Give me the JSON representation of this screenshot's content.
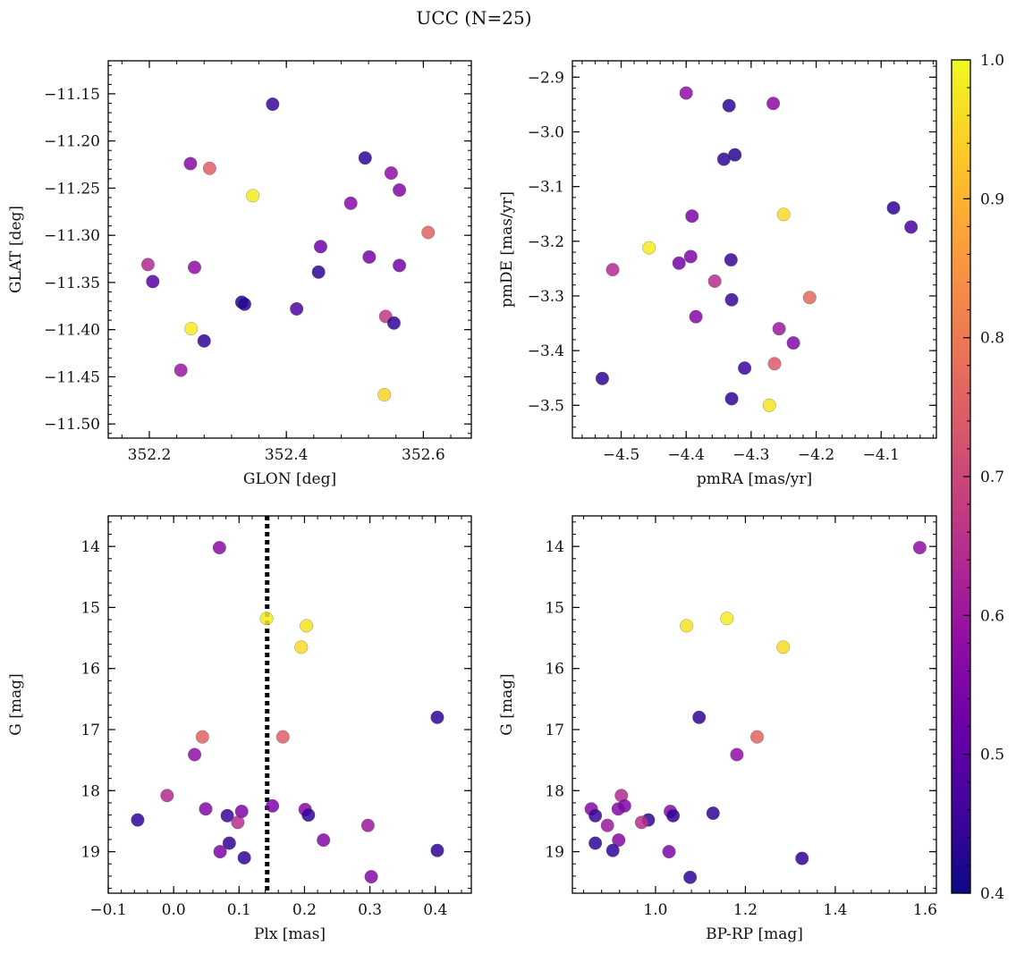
{
  "title": "UCC (N=25)",
  "colorbar": {
    "range": [
      0.4,
      1.0
    ],
    "ticks": [
      0.4,
      0.5,
      0.6,
      0.7,
      0.8,
      0.9,
      1.0
    ],
    "tick_labels": [
      "0.4",
      "0.5",
      "0.6",
      "0.7",
      "0.8",
      "0.9",
      "1.0"
    ],
    "colormap": "plasma"
  },
  "chart_data": [
    {
      "type": "scatter",
      "xlabel": "GLON [deg]",
      "ylabel": "GLAT [deg]",
      "xlim": [
        352.14,
        352.67
      ],
      "ylim": [
        -11.515,
        -11.115
      ],
      "y_inverted": false,
      "xticks": [
        352.2,
        352.4,
        352.6
      ],
      "xtick_labels": [
        "352.2",
        "352.4",
        "352.6"
      ],
      "yticks": [
        -11.15,
        -11.2,
        -11.25,
        -11.3,
        -11.35,
        -11.4,
        -11.45,
        -11.5
      ],
      "ytick_labels": [
        "−11.15",
        "−11.20",
        "−11.25",
        "−11.30",
        "−11.35",
        "−11.40",
        "−11.45",
        "−11.50"
      ],
      "x": [
        352.38,
        352.26,
        352.288,
        352.515,
        352.553,
        352.351,
        352.565,
        352.494,
        352.607,
        352.45,
        352.198,
        352.521,
        352.266,
        352.565,
        352.205,
        352.447,
        352.335,
        352.339,
        352.415,
        352.545,
        352.557,
        352.261,
        352.28,
        352.246,
        352.543
      ],
      "y": [
        -11.161,
        -11.224,
        -11.229,
        -11.218,
        -11.234,
        -11.258,
        -11.252,
        -11.266,
        -11.297,
        -11.312,
        -11.331,
        -11.323,
        -11.334,
        -11.332,
        -11.349,
        -11.339,
        -11.371,
        -11.373,
        -11.378,
        -11.386,
        -11.393,
        -11.399,
        -11.412,
        -11.443,
        -11.469
      ],
      "c": [
        0.45,
        0.57,
        0.75,
        0.44,
        0.58,
        0.98,
        0.56,
        0.57,
        0.76,
        0.53,
        0.64,
        0.54,
        0.58,
        0.54,
        0.49,
        0.44,
        0.43,
        0.43,
        0.48,
        0.67,
        0.44,
        0.98,
        0.44,
        0.6,
        0.95
      ]
    },
    {
      "type": "scatter",
      "xlabel": "pmRA [mas/yr]",
      "ylabel": "pmDE [mas/yr]",
      "xlim": [
        -4.575,
        -4.015
      ],
      "ylim": [
        -3.56,
        -2.87
      ],
      "y_inverted": false,
      "xticks": [
        -4.5,
        -4.4,
        -4.3,
        -4.2,
        -4.1
      ],
      "xtick_labels": [
        "−4.5",
        "−4.4",
        "−4.3",
        "−4.2",
        "−4.1"
      ],
      "yticks": [
        -2.9,
        -3.0,
        -3.1,
        -3.2,
        -3.3,
        -3.4,
        -3.5
      ],
      "ytick_labels": [
        "−2.9",
        "−3.0",
        "−3.1",
        "−3.2",
        "−3.3",
        "−3.4",
        "−3.5"
      ],
      "x": [
        -4.4,
        -4.334,
        -4.266,
        -4.325,
        -4.342,
        -4.081,
        -4.391,
        -4.25,
        -4.054,
        -4.457,
        -4.411,
        -4.393,
        -4.513,
        -4.331,
        -4.356,
        -4.21,
        -4.33,
        -4.385,
        -4.257,
        -4.235,
        -4.264,
        -4.31,
        -4.529,
        -4.33,
        -4.272
      ],
      "y": [
        -2.929,
        -2.952,
        -2.948,
        -3.042,
        -3.05,
        -3.139,
        -3.154,
        -3.151,
        -3.174,
        -3.212,
        -3.24,
        -3.228,
        -3.252,
        -3.234,
        -3.273,
        -3.303,
        -3.307,
        -3.338,
        -3.36,
        -3.386,
        -3.424,
        -3.432,
        -3.451,
        -3.488,
        -3.5
      ],
      "c": [
        0.58,
        0.44,
        0.57,
        0.43,
        0.44,
        0.44,
        0.55,
        0.96,
        0.47,
        0.98,
        0.54,
        0.55,
        0.64,
        0.45,
        0.65,
        0.77,
        0.45,
        0.56,
        0.6,
        0.56,
        0.74,
        0.45,
        0.44,
        0.44,
        0.97
      ],
      "tick_direction": "in"
    },
    {
      "type": "scatter",
      "xlabel": "Plx [mas]",
      "ylabel": "G [mag]",
      "xlim": [
        -0.1,
        0.455
      ],
      "ylim": [
        19.68,
        13.5
      ],
      "y_inverted": true,
      "xticks": [
        -0.1,
        0.0,
        0.1,
        0.2,
        0.3,
        0.4
      ],
      "xtick_labels": [
        "−0.1",
        "0.0",
        "0.1",
        "0.2",
        "0.3",
        "0.4"
      ],
      "yticks": [
        14,
        15,
        16,
        17,
        18,
        19
      ],
      "ytick_labels": [
        "14",
        "15",
        "16",
        "17",
        "18",
        "19"
      ],
      "vline_x": 0.143,
      "x": [
        0.07,
        0.142,
        0.203,
        0.195,
        0.403,
        0.044,
        0.167,
        0.032,
        -0.01,
        -0.055,
        0.049,
        0.082,
        0.098,
        0.104,
        0.151,
        0.201,
        0.206,
        0.229,
        0.297,
        0.071,
        0.085,
        0.108,
        0.403,
        0.302
      ],
      "y": [
        14.02,
        15.18,
        15.3,
        15.65,
        16.8,
        17.12,
        17.12,
        17.41,
        18.08,
        18.48,
        18.3,
        18.41,
        18.52,
        18.34,
        18.25,
        18.31,
        18.4,
        18.81,
        18.57,
        19.0,
        18.86,
        19.1,
        18.98,
        19.41
      ],
      "c": [
        0.57,
        0.98,
        0.97,
        0.96,
        0.44,
        0.76,
        0.75,
        0.58,
        0.64,
        0.44,
        0.56,
        0.45,
        0.65,
        0.55,
        0.55,
        0.57,
        0.44,
        0.56,
        0.6,
        0.55,
        0.44,
        0.44,
        0.44,
        0.56
      ]
    },
    {
      "type": "scatter",
      "xlabel": "BP-RP [mag]",
      "ylabel": "G [mag]",
      "xlim": [
        0.815,
        1.625
      ],
      "ylim": [
        19.68,
        13.5
      ],
      "y_inverted": true,
      "xticks": [
        1.0,
        1.2,
        1.4,
        1.6
      ],
      "xtick_labels": [
        "1.0",
        "1.2",
        "1.4",
        "1.6"
      ],
      "yticks": [
        14,
        15,
        16,
        17,
        18,
        19
      ],
      "ytick_labels": [
        "14",
        "15",
        "16",
        "17",
        "18",
        "19"
      ],
      "x": [
        1.588,
        1.159,
        1.069,
        1.284,
        1.097,
        1.226,
        1.181,
        0.924,
        0.857,
        0.866,
        0.917,
        0.931,
        0.893,
        0.984,
        0.969,
        1.033,
        1.039,
        1.128,
        0.918,
        1.03,
        0.866,
        0.905,
        1.077,
        1.326
      ],
      "y": [
        14.02,
        15.18,
        15.3,
        15.65,
        16.8,
        17.12,
        17.41,
        18.08,
        18.3,
        18.41,
        18.3,
        18.25,
        18.57,
        18.48,
        18.52,
        18.34,
        18.41,
        18.37,
        18.81,
        19.0,
        18.86,
        18.98,
        19.42,
        19.11
      ],
      "c": [
        0.58,
        0.98,
        0.97,
        0.96,
        0.44,
        0.76,
        0.58,
        0.64,
        0.56,
        0.45,
        0.56,
        0.55,
        0.6,
        0.44,
        0.65,
        0.57,
        0.44,
        0.44,
        0.56,
        0.55,
        0.44,
        0.44,
        0.44,
        0.44
      ]
    }
  ]
}
